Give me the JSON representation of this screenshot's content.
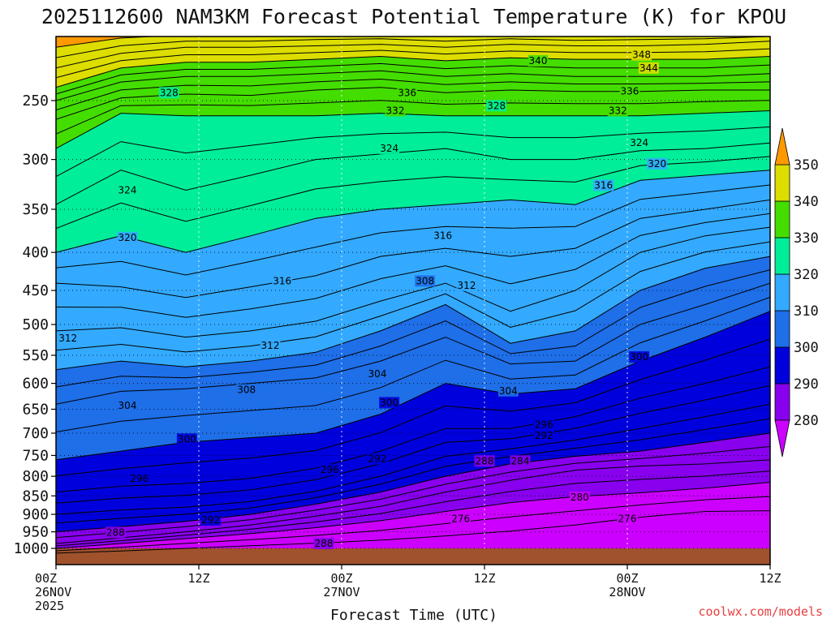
{
  "chart_data": {
    "type": "heatmap",
    "title": "2025112600 NAM3KM Forecast Potential Temperature (K) for KPOU",
    "xlabel": "Forecast Time (UTC)",
    "ylabel": "",
    "units": "K",
    "y_axis": {
      "type": "log-pressure",
      "range": [
        1000,
        200
      ],
      "tick_labels": [
        "250",
        "300",
        "350",
        "400",
        "450",
        "500",
        "550",
        "600",
        "650",
        "700",
        "750",
        "800",
        "850",
        "900",
        "950",
        "1000"
      ]
    },
    "x_axis": {
      "range_hours": [
        0,
        60
      ],
      "ticks": [
        {
          "hour": 0,
          "lines": [
            "00Z",
            "26NOV",
            "2025"
          ]
        },
        {
          "hour": 12,
          "lines": [
            "12Z"
          ]
        },
        {
          "hour": 24,
          "lines": [
            "00Z",
            "27NOV"
          ]
        },
        {
          "hour": 36,
          "lines": [
            "12Z"
          ]
        },
        {
          "hour": 48,
          "lines": [
            "00Z",
            "28NOV"
          ]
        },
        {
          "hour": 60,
          "lines": [
            "12Z"
          ]
        }
      ]
    },
    "colorbar": {
      "levels": [
        280,
        290,
        300,
        310,
        320,
        330,
        340,
        350
      ],
      "labels": [
        "280",
        "290",
        "300",
        "310",
        "320",
        "330",
        "340",
        "350"
      ],
      "colors": [
        "#cc00ff",
        "#8800ee",
        "#0000dd",
        "#1e6fe8",
        "#33aaff",
        "#00ee99",
        "#44dd00",
        "#dddd00",
        "#ffd700",
        "#ff9900"
      ],
      "extend": "both"
    },
    "isentropes": [
      {
        "theta": 276,
        "pressures": [
          1015,
          1008,
          1000,
          992,
          984,
          975,
          962,
          948,
          930,
          908,
          892,
          890
        ]
      },
      {
        "theta": 280,
        "pressures": [
          1000,
          985,
          970,
          955,
          938,
          918,
          892,
          868,
          852,
          842,
          830,
          815
        ]
      },
      {
        "theta": 284,
        "pressures": [
          985,
          968,
          950,
          930,
          905,
          878,
          840,
          810,
          785,
          775,
          770,
          760
        ]
      },
      {
        "theta": 288,
        "pressures": [
          950,
          935,
          920,
          900,
          872,
          840,
          800,
          770,
          752,
          740,
          720,
          700
        ]
      },
      {
        "theta": 292,
        "pressures": [
          900,
          888,
          880,
          865,
          838,
          800,
          752,
          735,
          715,
          690,
          665,
          640
        ]
      },
      {
        "theta": 296,
        "pressures": [
          840,
          825,
          818,
          805,
          780,
          740,
          690,
          690,
          665,
          628,
          600,
          570
        ]
      },
      {
        "theta": 300,
        "pressures": [
          760,
          740,
          720,
          710,
          700,
          660,
          600,
          620,
          610,
          560,
          520,
          480
        ]
      },
      {
        "theta": 304,
        "pressures": [
          640,
          615,
          610,
          600,
          590,
          560,
          520,
          565,
          560,
          500,
          470,
          440
        ]
      },
      {
        "theta": 308,
        "pressures": [
          575,
          560,
          570,
          560,
          545,
          510,
          470,
          530,
          510,
          450,
          420,
          405
        ]
      },
      {
        "theta": 312,
        "pressures": [
          510,
          505,
          520,
          510,
          495,
          465,
          440,
          480,
          450,
          400,
          380,
          370
        ]
      },
      {
        "theta": 316,
        "pressures": [
          440,
          445,
          460,
          445,
          430,
          405,
          395,
          405,
          395,
          360,
          350,
          340
        ]
      },
      {
        "theta": 320,
        "pressures": [
          400,
          380,
          400,
          380,
          360,
          350,
          345,
          340,
          345,
          320,
          315,
          310
        ]
      },
      {
        "theta": 324,
        "pressures": [
          345,
          310,
          330,
          315,
          300,
          295,
          290,
          300,
          300,
          292,
          290,
          285
        ]
      },
      {
        "theta": 328,
        "pressures": [
          290,
          260,
          262,
          262,
          262,
          260,
          262,
          262,
          262,
          262,
          260,
          258
        ]
      },
      {
        "theta": 332,
        "pressures": [
          265,
          248,
          245,
          246,
          242,
          240,
          244,
          242,
          243,
          243,
          242,
          242
        ]
      },
      {
        "theta": 336,
        "pressures": [
          250,
          236,
          232,
          232,
          230,
          228,
          232,
          230,
          232,
          232,
          232,
          230
        ]
      },
      {
        "theta": 340,
        "pressures": [
          240,
          226,
          222,
          222,
          220,
          218,
          221,
          219,
          220,
          220,
          220,
          218
        ]
      },
      {
        "theta": 344,
        "pressures": [
          226,
          216,
          212,
          212,
          211,
          210,
          212,
          210,
          211,
          211,
          210,
          208
        ]
      },
      {
        "theta": 348,
        "pressures": [
          212,
          206,
          204,
          204,
          203,
          203,
          204,
          203,
          204,
          203,
          203,
          202
        ]
      }
    ],
    "contour_labels": [
      {
        "text": "328",
        "hour": 9.5,
        "p": 244
      },
      {
        "text": "336",
        "hour": 29.5,
        "p": 244
      },
      {
        "text": "332",
        "hour": 28.5,
        "p": 258
      },
      {
        "text": "340",
        "hour": 40.5,
        "p": 221
      },
      {
        "text": "348",
        "hour": 49.2,
        "p": 217
      },
      {
        "text": "344",
        "hour": 49.8,
        "p": 226
      },
      {
        "text": "336",
        "hour": 48.2,
        "p": 243
      },
      {
        "text": "332",
        "hour": 47.2,
        "p": 258
      },
      {
        "text": "328",
        "hour": 37.0,
        "p": 254
      },
      {
        "text": "324",
        "hour": 28.0,
        "p": 290
      },
      {
        "text": "324",
        "hour": 49.0,
        "p": 285
      },
      {
        "text": "320",
        "hour": 50.5,
        "p": 304
      },
      {
        "text": "316",
        "hour": 46.0,
        "p": 325
      },
      {
        "text": "324",
        "hour": 6.0,
        "p": 330
      },
      {
        "text": "320",
        "hour": 6.0,
        "p": 382
      },
      {
        "text": "316",
        "hour": 32.5,
        "p": 380
      },
      {
        "text": "316",
        "hour": 19.0,
        "p": 437
      },
      {
        "text": "308",
        "hour": 31.0,
        "p": 437
      },
      {
        "text": "312",
        "hour": 34.5,
        "p": 443
      },
      {
        "text": "312",
        "hour": 1.0,
        "p": 522
      },
      {
        "text": "312",
        "hour": 18.0,
        "p": 534
      },
      {
        "text": "304",
        "hour": 27.0,
        "p": 583
      },
      {
        "text": "308",
        "hour": 16.0,
        "p": 612
      },
      {
        "text": "304",
        "hour": 6.0,
        "p": 643
      },
      {
        "text": "300",
        "hour": 28.0,
        "p": 637
      },
      {
        "text": "304",
        "hour": 38.0,
        "p": 614
      },
      {
        "text": "300",
        "hour": 49.0,
        "p": 553
      },
      {
        "text": "296",
        "hour": 41.0,
        "p": 682
      },
      {
        "text": "292",
        "hour": 41.0,
        "p": 705
      },
      {
        "text": "300",
        "hour": 11.0,
        "p": 713
      },
      {
        "text": "296",
        "hour": 23.0,
        "p": 784
      },
      {
        "text": "292",
        "hour": 27.0,
        "p": 758
      },
      {
        "text": "296",
        "hour": 7.0,
        "p": 806
      },
      {
        "text": "288",
        "hour": 36.0,
        "p": 763
      },
      {
        "text": "284",
        "hour": 39.0,
        "p": 763
      },
      {
        "text": "280",
        "hour": 44.0,
        "p": 854
      },
      {
        "text": "292",
        "hour": 13.0,
        "p": 916
      },
      {
        "text": "288",
        "hour": 5.0,
        "p": 952
      },
      {
        "text": "288",
        "hour": 22.5,
        "p": 985
      },
      {
        "text": "276",
        "hour": 34.0,
        "p": 912
      },
      {
        "text": "276",
        "hour": 48.0,
        "p": 912
      }
    ]
  },
  "footer": {
    "credit": "coolwx.com/models"
  }
}
